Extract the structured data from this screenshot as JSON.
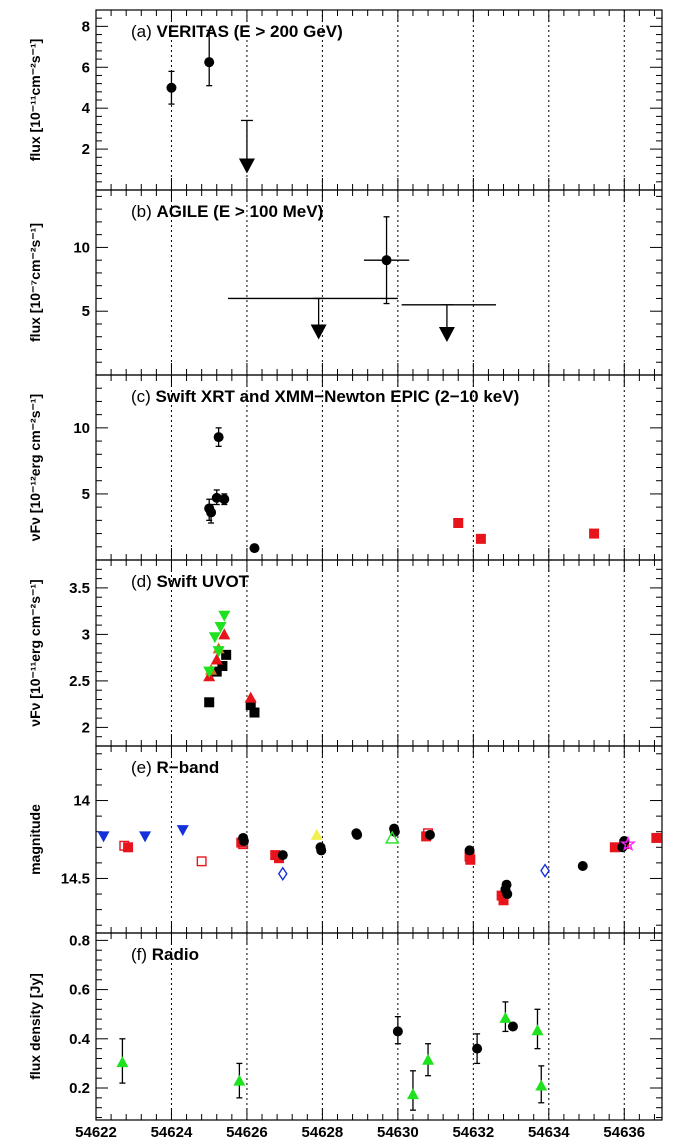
{
  "xlabel": "MJD",
  "xlim": [
    54622,
    54637
  ],
  "xticks": [
    54622,
    54624,
    54626,
    54628,
    54630,
    54632,
    54634,
    54636
  ],
  "chart_data": [
    {
      "type": "scatter",
      "prefix": "(a)",
      "title": "VERITAS (E > 200 GeV)",
      "ylabel": "flux [10⁻¹¹cm⁻²s⁻¹]",
      "ylim": [
        0,
        8.8
      ],
      "yticks": [
        2,
        4,
        6,
        8
      ],
      "grid": "vertical-dotted",
      "series": [
        {
          "marker": "circle",
          "color": "#000000",
          "points": [
            {
              "x": 54624.0,
              "y": 5.0,
              "ylo": 4.2,
              "yhi": 5.8
            },
            {
              "x": 54625.0,
              "y": 6.25,
              "ylo": 5.1,
              "yhi": 7.8
            }
          ]
        },
        {
          "marker": "upper-limit",
          "color": "#000000",
          "points": [
            {
              "x": 54626.0,
              "y": 3.4,
              "yarrow": 1.0
            }
          ]
        }
      ]
    },
    {
      "type": "scatter",
      "prefix": "(b)",
      "title": "AGILE (E > 100 MeV)",
      "ylabel": "flux [10⁻⁷cm⁻²s⁻¹]",
      "ylim": [
        0,
        14.5
      ],
      "yticks": [
        5,
        10
      ],
      "series": [
        {
          "marker": "circle",
          "color": "#000000",
          "points": [
            {
              "x": 54629.7,
              "y": 9.0,
              "ylo": 5.6,
              "yhi": 12.4,
              "xlo": 54629.1,
              "xhi": 54630.3
            }
          ]
        },
        {
          "marker": "upper-limit",
          "color": "#000000",
          "points": [
            {
              "x": 54627.9,
              "y": 6.0,
              "yarrow": 3.1,
              "xlo": 54625.5,
              "xhi": 54630.0
            },
            {
              "x": 54631.3,
              "y": 5.5,
              "yarrow": 2.9,
              "xlo": 54630.1,
              "xhi": 54632.6
            }
          ]
        }
      ]
    },
    {
      "type": "scatter",
      "prefix": "(c)",
      "title": "Swift XRT and XMM−Newton EPIC (2−10 keV)",
      "ylabel": "νFν [10⁻¹²erg cm⁻²s⁻¹]",
      "ylim": [
        0,
        14
      ],
      "yticks": [
        5,
        10
      ],
      "series": [
        {
          "marker": "circle",
          "color": "#000000",
          "points": [
            {
              "x": 54625.25,
              "y": 9.3,
              "ylo": 8.6,
              "yhi": 10.0
            },
            {
              "x": 54625.0,
              "y": 3.9,
              "ylo": 3.0,
              "yhi": 4.6
            },
            {
              "x": 54625.05,
              "y": 3.6,
              "ylo": 2.8,
              "yhi": 4.2
            },
            {
              "x": 54625.2,
              "y": 4.7,
              "ylo": 4.2,
              "yhi": 5.3
            },
            {
              "x": 54625.4,
              "y": 4.6,
              "ylo": 4.2,
              "yhi": 5.0
            },
            {
              "x": 54626.2,
              "y": 0.9
            }
          ]
        },
        {
          "marker": "square",
          "color": "#e8141c",
          "points": [
            {
              "x": 54631.6,
              "y": 2.8
            },
            {
              "x": 54632.2,
              "y": 1.6
            },
            {
              "x": 54635.2,
              "y": 2.0
            }
          ]
        }
      ]
    },
    {
      "type": "scatter",
      "prefix": "(d)",
      "title": "Swift UVOT",
      "ylabel": "νFν [10⁻¹¹erg cm⁻²s⁻¹]",
      "ylim": [
        1.8,
        3.8
      ],
      "yticks": [
        2,
        2.5,
        3,
        3.5
      ],
      "series": [
        {
          "marker": "square",
          "color": "#000000",
          "points": [
            {
              "x": 54625.0,
              "y": 2.27
            },
            {
              "x": 54625.2,
              "y": 2.6
            },
            {
              "x": 54625.35,
              "y": 2.66
            },
            {
              "x": 54625.45,
              "y": 2.78
            },
            {
              "x": 54626.1,
              "y": 2.24
            },
            {
              "x": 54626.2,
              "y": 2.16
            }
          ]
        },
        {
          "marker": "triangle-up",
          "color": "#e8141c",
          "points": [
            {
              "x": 54625.0,
              "y": 2.55
            },
            {
              "x": 54625.2,
              "y": 2.73
            },
            {
              "x": 54625.4,
              "y": 3.0
            },
            {
              "x": 54626.1,
              "y": 2.32
            }
          ]
        },
        {
          "marker": "triangle-up",
          "color": "#c47a1a",
          "points": [
            {
              "x": 54625.05,
              "y": 2.62
            },
            {
              "x": 54625.25,
              "y": 2.85
            }
          ]
        },
        {
          "marker": "triangle-down",
          "color": "#1fe21f",
          "points": [
            {
              "x": 54625.0,
              "y": 2.6
            },
            {
              "x": 54625.15,
              "y": 2.97
            },
            {
              "x": 54625.3,
              "y": 3.08
            },
            {
              "x": 54625.4,
              "y": 3.2
            },
            {
              "x": 54625.25,
              "y": 2.82
            }
          ]
        }
      ]
    },
    {
      "type": "scatter",
      "prefix": "(e)",
      "title": "R−band",
      "ylabel": "magnitude",
      "ylim": [
        14.85,
        13.65
      ],
      "inverted": true,
      "yticks": [
        14,
        14.5
      ],
      "series": [
        {
          "marker": "triangle-down",
          "color": "#1430d8",
          "points": [
            {
              "x": 54622.2,
              "y": 14.23
            },
            {
              "x": 54623.3,
              "y": 14.23
            },
            {
              "x": 54624.3,
              "y": 14.19
            }
          ]
        },
        {
          "marker": "open-square",
          "color": "#e8141c",
          "points": [
            {
              "x": 54622.75,
              "y": 14.29
            },
            {
              "x": 54624.8,
              "y": 14.39
            },
            {
              "x": 54625.9,
              "y": 14.28
            },
            {
              "x": 54630.8,
              "y": 14.21
            }
          ]
        },
        {
          "marker": "square",
          "color": "#e8141c",
          "points": [
            {
              "x": 54622.85,
              "y": 14.3
            },
            {
              "x": 54625.85,
              "y": 14.27
            },
            {
              "x": 54626.75,
              "y": 14.35
            },
            {
              "x": 54626.85,
              "y": 14.37
            },
            {
              "x": 54630.75,
              "y": 14.23
            },
            {
              "x": 54631.9,
              "y": 14.36
            },
            {
              "x": 54631.92,
              "y": 14.38
            },
            {
              "x": 54632.75,
              "y": 14.61
            },
            {
              "x": 54632.8,
              "y": 14.64
            },
            {
              "x": 54635.75,
              "y": 14.3
            },
            {
              "x": 54636.0,
              "y": 14.28
            },
            {
              "x": 54636.85,
              "y": 14.24
            }
          ]
        },
        {
          "marker": "circle",
          "color": "#000000",
          "points": [
            {
              "x": 54625.9,
              "y": 14.24
            },
            {
              "x": 54625.92,
              "y": 14.26
            },
            {
              "x": 54626.95,
              "y": 14.35
            },
            {
              "x": 54627.95,
              "y": 14.3
            },
            {
              "x": 54627.97,
              "y": 14.32
            },
            {
              "x": 54628.9,
              "y": 14.21
            },
            {
              "x": 54628.92,
              "y": 14.22
            },
            {
              "x": 54629.9,
              "y": 14.18
            },
            {
              "x": 54629.92,
              "y": 14.2
            },
            {
              "x": 54630.85,
              "y": 14.22
            },
            {
              "x": 54631.9,
              "y": 14.32
            },
            {
              "x": 54632.85,
              "y": 14.57
            },
            {
              "x": 54632.9,
              "y": 14.6
            },
            {
              "x": 54632.88,
              "y": 14.54
            },
            {
              "x": 54634.9,
              "y": 14.42
            },
            {
              "x": 54636.0,
              "y": 14.26
            },
            {
              "x": 54635.95,
              "y": 14.3
            }
          ]
        },
        {
          "marker": "triangle-up",
          "color": "#f0f050",
          "points": [
            {
              "x": 54627.85,
              "y": 14.22
            }
          ]
        },
        {
          "marker": "open-triangle-up",
          "color": "#1fe21f",
          "points": [
            {
              "x": 54629.85,
              "y": 14.24
            }
          ]
        },
        {
          "marker": "open-diamond",
          "color": "#1430d8",
          "points": [
            {
              "x": 54626.95,
              "y": 14.47
            },
            {
              "x": 54633.9,
              "y": 14.45
            }
          ]
        },
        {
          "marker": "open-star",
          "color": "#ff20ff",
          "points": [
            {
              "x": 54636.1,
              "y": 14.28
            }
          ]
        }
      ]
    },
    {
      "type": "scatter",
      "prefix": "(f)",
      "title": "Radio",
      "ylabel": "flux density [Jy]",
      "ylim": [
        0.07,
        0.83
      ],
      "yticks": [
        0.2,
        0.4,
        0.6,
        0.8
      ],
      "series": [
        {
          "marker": "triangle-up",
          "color": "#1fe21f",
          "points": [
            {
              "x": 54622.7,
              "y": 0.305,
              "ylo": 0.22,
              "yhi": 0.4
            },
            {
              "x": 54625.8,
              "y": 0.23,
              "ylo": 0.16,
              "yhi": 0.3
            },
            {
              "x": 54630.4,
              "y": 0.175,
              "ylo": 0.11,
              "yhi": 0.27
            },
            {
              "x": 54630.8,
              "y": 0.315,
              "ylo": 0.25,
              "yhi": 0.38
            },
            {
              "x": 54632.85,
              "y": 0.485,
              "ylo": 0.43,
              "yhi": 0.55
            },
            {
              "x": 54633.7,
              "y": 0.435,
              "ylo": 0.36,
              "yhi": 0.52
            },
            {
              "x": 54633.8,
              "y": 0.21,
              "ylo": 0.14,
              "yhi": 0.29
            }
          ]
        },
        {
          "marker": "circle",
          "color": "#000000",
          "points": [
            {
              "x": 54630.0,
              "y": 0.43,
              "ylo": 0.38,
              "yhi": 0.49
            },
            {
              "x": 54632.1,
              "y": 0.36,
              "ylo": 0.3,
              "yhi": 0.42
            },
            {
              "x": 54633.05,
              "y": 0.45
            }
          ]
        }
      ]
    }
  ]
}
